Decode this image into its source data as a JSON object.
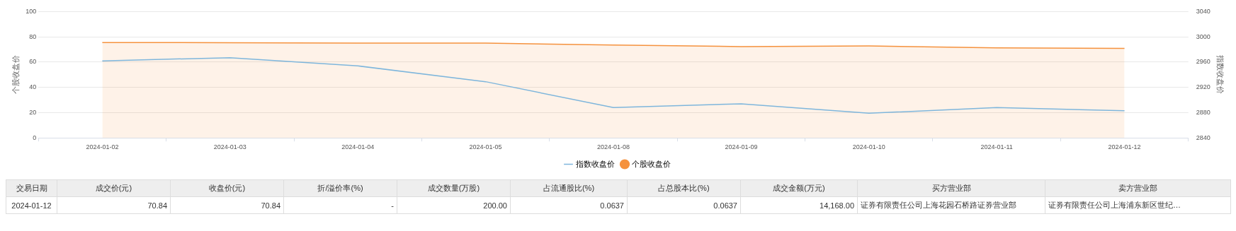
{
  "chart_data": [
    {
      "type": "line",
      "ylabel": "个股收盘价",
      "y2label": "指数收盘价",
      "categories": [
        "2024-01-02",
        "2024-01-03",
        "2024-01-04",
        "2024-01-05",
        "2024-01-08",
        "2024-01-09",
        "2024-01-10",
        "2024-01-11",
        "2024-01-12"
      ],
      "series": [
        {
          "name": "指数收盘价",
          "type": "line",
          "axis": "y2",
          "color": "#7eb6dc",
          "values": [
            2962,
            2967,
            2954,
            2929,
            2888,
            2894,
            2879,
            2888,
            2883
          ]
        },
        {
          "name": "个股收盘价",
          "type": "area",
          "axis": "y",
          "color": "#f5923e",
          "values": [
            75.5,
            75.4,
            75.1,
            75.1,
            73.5,
            72.3,
            72.8,
            71.3,
            70.8
          ]
        }
      ],
      "ylim": [
        0,
        100
      ],
      "yticks": [
        0,
        20,
        40,
        60,
        80,
        100
      ],
      "y2lim": [
        2840,
        3040
      ],
      "y2ticks": [
        2840,
        2880,
        2920,
        2960,
        3000,
        3040
      ],
      "grid": "y",
      "legend": "bottom",
      "marker": "none"
    },
    {
      "type": "other",
      "categories": [
        "交易日期",
        "成交价(元)",
        "收盘价(元)",
        "折/溢价率(%)",
        "成交数量(万股)",
        "占流通股比(%)",
        "占总股本比(%)",
        "成交金额(万元)",
        "买方营业部",
        "卖方营业部"
      ],
      "annotations": [
        "2024-01-12",
        "70.84",
        "70.84",
        "-",
        "200.00",
        "0.0637",
        "0.0637",
        "14,168.00",
        "证券有限责任公司上海花园石桥路证券营业部",
        "证券有限责任公司上海浦东新区世纪…"
      ]
    }
  ]
}
